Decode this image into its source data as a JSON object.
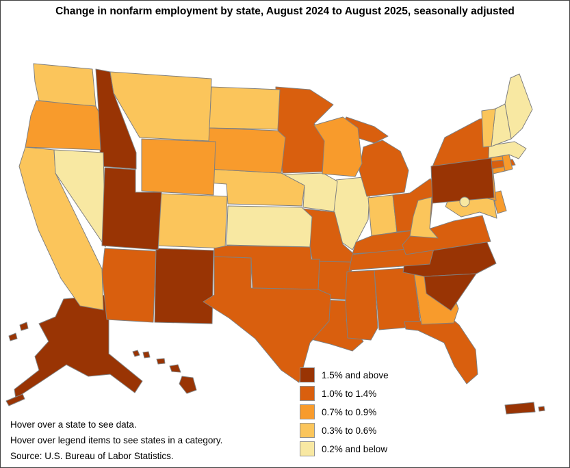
{
  "title": "Change in nonfarm employment by state, August 2024 to August 2025, seasonally adjusted",
  "legend": [
    {
      "label": "1.5% and above",
      "color": "#993404"
    },
    {
      "label": "1.0% to 1.4%",
      "color": "#d95f0e"
    },
    {
      "label": "0.7% to 0.9%",
      "color": "#f89b2c"
    },
    {
      "label": "0.3% to 0.6%",
      "color": "#fbc55b"
    },
    {
      "label": "0.2% and below",
      "color": "#f8e8a2"
    }
  ],
  "footer": {
    "line1": "Hover over a state to see data.",
    "line2": "Hover over legend items to see states in a category.",
    "line3": "Source: U.S. Bureau of Labor Statistics."
  },
  "chart_data": {
    "type": "choropleth",
    "region": "United States, District of Columbia and Puerto Rico",
    "title": "Change in nonfarm employment by state, August 2024 to August 2025, seasonally adjusted",
    "categories": [
      "1.5% and above",
      "1.0% to 1.4%",
      "0.7% to 0.9%",
      "0.3% to 0.6%",
      "0.2% and below"
    ],
    "category_colors": [
      "#993404",
      "#d95f0e",
      "#f89b2c",
      "#fbc55b",
      "#f8e8a2"
    ],
    "states": [
      {
        "abbr": "AL",
        "name": "Alabama",
        "category": 1
      },
      {
        "abbr": "AK",
        "name": "Alaska",
        "category": 0
      },
      {
        "abbr": "AZ",
        "name": "Arizona",
        "category": 1
      },
      {
        "abbr": "AR",
        "name": "Arkansas",
        "category": 1
      },
      {
        "abbr": "CA",
        "name": "California",
        "category": 3
      },
      {
        "abbr": "CO",
        "name": "Colorado",
        "category": 3
      },
      {
        "abbr": "CT",
        "name": "Connecticut",
        "category": 2
      },
      {
        "abbr": "DE",
        "name": "Delaware",
        "category": 2
      },
      {
        "abbr": "DC",
        "name": "District of Columbia",
        "category": 4
      },
      {
        "abbr": "FL",
        "name": "Florida",
        "category": 1
      },
      {
        "abbr": "GA",
        "name": "Georgia",
        "category": 2
      },
      {
        "abbr": "HI",
        "name": "Hawaii",
        "category": 0
      },
      {
        "abbr": "ID",
        "name": "Idaho",
        "category": 0
      },
      {
        "abbr": "IL",
        "name": "Illinois",
        "category": 4
      },
      {
        "abbr": "IN",
        "name": "Indiana",
        "category": 3
      },
      {
        "abbr": "IA",
        "name": "Iowa",
        "category": 4
      },
      {
        "abbr": "KS",
        "name": "Kansas",
        "category": 4
      },
      {
        "abbr": "KY",
        "name": "Kentucky",
        "category": 1
      },
      {
        "abbr": "LA",
        "name": "Louisiana",
        "category": 1
      },
      {
        "abbr": "ME",
        "name": "Maine",
        "category": 4
      },
      {
        "abbr": "MD",
        "name": "Maryland",
        "category": 3
      },
      {
        "abbr": "MA",
        "name": "Massachusetts",
        "category": 4
      },
      {
        "abbr": "MI",
        "name": "Michigan",
        "category": 1
      },
      {
        "abbr": "MN",
        "name": "Minnesota",
        "category": 1
      },
      {
        "abbr": "MS",
        "name": "Mississippi",
        "category": 1
      },
      {
        "abbr": "MO",
        "name": "Missouri",
        "category": 1
      },
      {
        "abbr": "MT",
        "name": "Montana",
        "category": 3
      },
      {
        "abbr": "NE",
        "name": "Nebraska",
        "category": 3
      },
      {
        "abbr": "NV",
        "name": "Nevada",
        "category": 4
      },
      {
        "abbr": "NH",
        "name": "New Hampshire",
        "category": 4
      },
      {
        "abbr": "NJ",
        "name": "New Jersey",
        "category": 2
      },
      {
        "abbr": "NM",
        "name": "New Mexico",
        "category": 0
      },
      {
        "abbr": "NY",
        "name": "New York",
        "category": 1
      },
      {
        "abbr": "NC",
        "name": "North Carolina",
        "category": 0
      },
      {
        "abbr": "ND",
        "name": "North Dakota",
        "category": 3
      },
      {
        "abbr": "OH",
        "name": "Ohio",
        "category": 1
      },
      {
        "abbr": "OK",
        "name": "Oklahoma",
        "category": 1
      },
      {
        "abbr": "OR",
        "name": "Oregon",
        "category": 2
      },
      {
        "abbr": "PA",
        "name": "Pennsylvania",
        "category": 0
      },
      {
        "abbr": "PR",
        "name": "Puerto Rico",
        "category": 0
      },
      {
        "abbr": "RI",
        "name": "Rhode Island",
        "category": 2
      },
      {
        "abbr": "SC",
        "name": "South Carolina",
        "category": 0
      },
      {
        "abbr": "SD",
        "name": "South Dakota",
        "category": 2
      },
      {
        "abbr": "TN",
        "name": "Tennessee",
        "category": 1
      },
      {
        "abbr": "TX",
        "name": "Texas",
        "category": 1
      },
      {
        "abbr": "UT",
        "name": "Utah",
        "category": 0
      },
      {
        "abbr": "VT",
        "name": "Vermont",
        "category": 3
      },
      {
        "abbr": "VA",
        "name": "Virginia",
        "category": 1
      },
      {
        "abbr": "WA",
        "name": "Washington",
        "category": 3
      },
      {
        "abbr": "WV",
        "name": "West Virginia",
        "category": 3
      },
      {
        "abbr": "WI",
        "name": "Wisconsin",
        "category": 2
      },
      {
        "abbr": "WY",
        "name": "Wyoming",
        "category": 2
      }
    ]
  }
}
